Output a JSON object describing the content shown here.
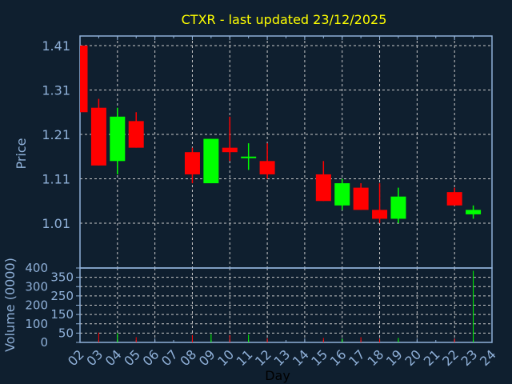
{
  "chart_data": {
    "type": "candlestick",
    "title": "CTXR - last updated 23/12/2025",
    "xlabel": "Day",
    "ylabel": "Price",
    "volume_ylabel": "Volume (0000)",
    "x_ticks": [
      "02",
      "03",
      "04",
      "05",
      "06",
      "07",
      "08",
      "09",
      "10",
      "11",
      "12",
      "13",
      "14",
      "15",
      "16",
      "17",
      "18",
      "19",
      "20",
      "21",
      "22",
      "23",
      "24"
    ],
    "y_ticks": [
      "1.01",
      "1.11",
      "1.21",
      "1.31",
      "1.41"
    ],
    "volume_ticks": [
      "0",
      "50",
      "100",
      "150",
      "200",
      "250",
      "300",
      "350",
      "400"
    ],
    "ylim": [
      0.97,
      1.42
    ],
    "volume_ylim": [
      0,
      400
    ],
    "grid": true,
    "colors": {
      "background": "#0f1f2f",
      "title": "#ffff00",
      "axis": "#8fb0d8",
      "up": "#00ff00",
      "down": "#ff0000",
      "grid": "#c8c8c8"
    },
    "candles": [
      {
        "day": 2,
        "open": 1.41,
        "high": 1.41,
        "low": 1.26,
        "close": 1.26,
        "volume": null
      },
      {
        "day": 3,
        "open": 1.27,
        "high": 1.29,
        "low": 1.14,
        "close": 1.14,
        "volume": 53
      },
      {
        "day": 4,
        "open": 1.15,
        "high": 1.27,
        "low": 1.12,
        "close": 1.25,
        "volume": 50
      },
      {
        "day": 5,
        "open": 1.24,
        "high": 1.26,
        "low": 1.18,
        "close": 1.18,
        "volume": 28
      },
      {
        "day": 8,
        "open": 1.17,
        "high": 1.18,
        "low": 1.1,
        "close": 1.12,
        "volume": 39
      },
      {
        "day": 9,
        "open": 1.1,
        "high": 1.2,
        "low": 1.1,
        "close": 1.2,
        "volume": 45
      },
      {
        "day": 10,
        "open": 1.18,
        "high": 1.25,
        "low": 1.15,
        "close": 1.17,
        "volume": 39
      },
      {
        "day": 11,
        "open": 1.16,
        "high": 1.19,
        "low": 1.13,
        "close": 1.16,
        "volume": 42
      },
      {
        "day": 12,
        "open": 1.15,
        "high": 1.19,
        "low": 1.11,
        "close": 1.12,
        "volume": 22
      },
      {
        "day": 15,
        "open": 1.12,
        "high": 1.15,
        "low": 1.06,
        "close": 1.06,
        "volume": 24
      },
      {
        "day": 16,
        "open": 1.05,
        "high": 1.11,
        "low": 1.04,
        "close": 1.1,
        "volume": 20
      },
      {
        "day": 17,
        "open": 1.09,
        "high": 1.1,
        "low": 1.04,
        "close": 1.04,
        "volume": 28
      },
      {
        "day": 18,
        "open": 1.04,
        "high": 1.1,
        "low": 1.01,
        "close": 1.02,
        "volume": 20
      },
      {
        "day": 19,
        "open": 1.02,
        "high": 1.09,
        "low": 1.01,
        "close": 1.07,
        "volume": 24
      },
      {
        "day": 22,
        "open": 1.08,
        "high": 1.09,
        "low": 1.05,
        "close": 1.05,
        "volume": 20
      },
      {
        "day": 23,
        "open": 1.03,
        "high": 1.05,
        "low": 1.02,
        "close": 1.04,
        "volume": 385
      }
    ]
  }
}
